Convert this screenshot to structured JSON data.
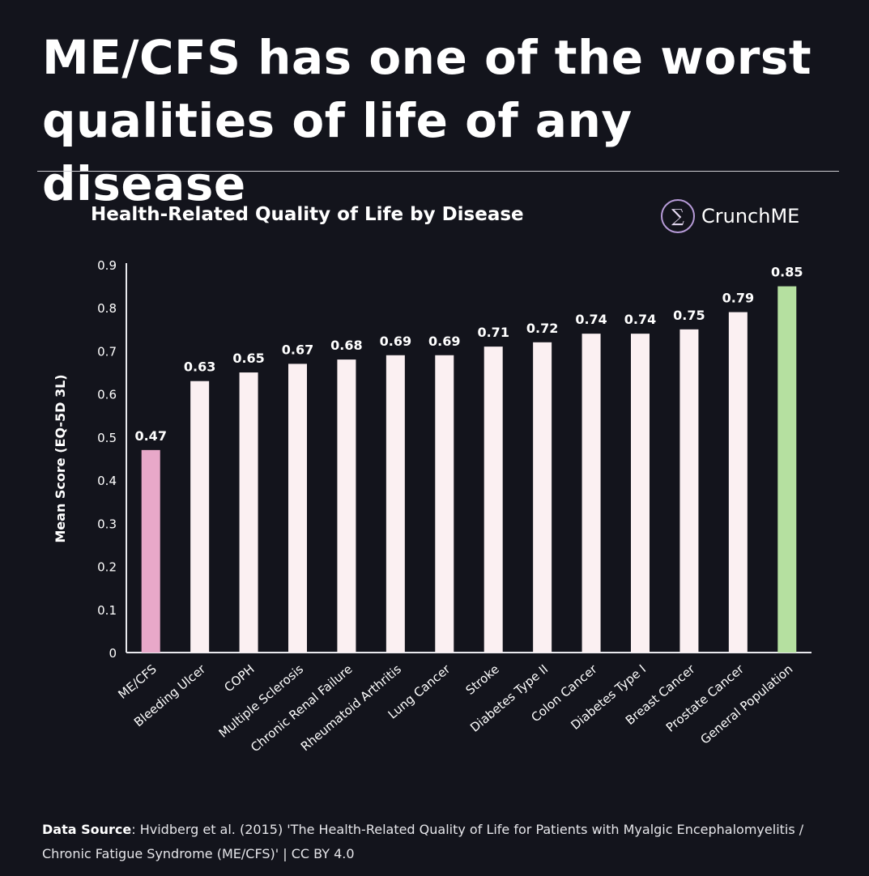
{
  "headline": "ME/CFS has one of the worst qualities of life of any disease",
  "brand": {
    "name": "CrunchME",
    "logo_symbol": "∑"
  },
  "footer": {
    "label": "Data Source",
    "text": ": Hvidberg et al. (2015) 'The Health-Related Quality of Life for Patients with Myalgic Encephalomyelitis / Chronic Fatigue Syndrome (ME/CFS)' | CC BY 4.0"
  },
  "colors": {
    "background": "#13141c",
    "bar_default": "#fbf0f2",
    "bar_mecfs": "#e8a8c9",
    "bar_general": "#b5e0a0",
    "axis": "#e9e9ee"
  },
  "chart_data": {
    "type": "bar",
    "title": "Health-Related Quality of Life by Disease",
    "xlabel": "",
    "ylabel": "Mean Score (EQ-5D 3L)",
    "ylim": [
      0,
      0.9
    ],
    "yticks": [
      "0",
      "0.1",
      "0.2",
      "0.3",
      "0.4",
      "0.5",
      "0.6",
      "0.7",
      "0.8",
      "0.9"
    ],
    "categories": [
      "ME/CFS",
      "Bleeding Ulcer",
      "COPH",
      "Multiple Sclerosis",
      "Chronic Renal Failure",
      "Rheumatoid Arthritis",
      "Lung Cancer",
      "Stroke",
      "Diabetes Type II",
      "Colon Cancer",
      "Diabetes Type I",
      "Breast Cancer",
      "Prostate Cancer",
      "General Population"
    ],
    "values": [
      0.47,
      0.63,
      0.65,
      0.67,
      0.68,
      0.69,
      0.69,
      0.71,
      0.72,
      0.74,
      0.74,
      0.75,
      0.79,
      0.85
    ],
    "value_labels": [
      "0.47",
      "0.63",
      "0.65",
      "0.67",
      "0.68",
      "0.69",
      "0.69",
      "0.71",
      "0.72",
      "0.74",
      "0.74",
      "0.75",
      "0.79",
      "0.85"
    ],
    "grid": false,
    "legend": "none"
  }
}
